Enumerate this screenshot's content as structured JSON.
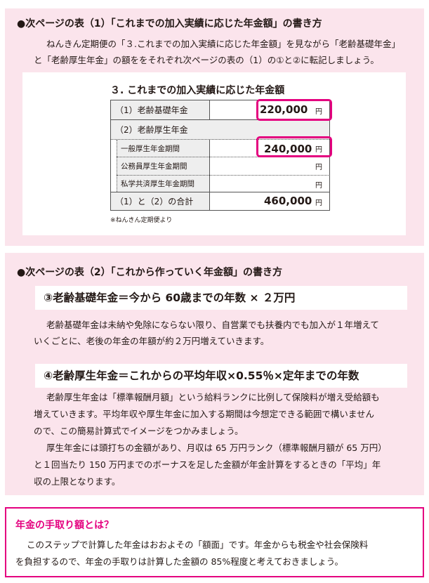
{
  "section1": {
    "heading": "●次ページの表（1）「これまでの加入実績に応じた年金額」の書き方",
    "paragraph": [
      "ねんきん定期便の「３.これまでの加入実績に応じた年金額」を見ながら「老齢基礎年金」",
      "と「老齢厚生年金」の額ををそれぞれ次ページの表の（1）の①と②に転記しましょう。"
    ],
    "table": {
      "title": "３. これまでの加入実績に応じた年金額",
      "rows": [
        {
          "label": "（1）老齢基礎年金",
          "value": "220,000",
          "unit": "円"
        },
        {
          "label": "（2）老齢厚生年金"
        },
        {
          "label": "一般厚生年金期間",
          "value": "240,000",
          "unit": "円"
        },
        {
          "label": "公務員厚生年金期間",
          "unit": "円"
        },
        {
          "label": "私学共済厚生年金期間",
          "unit": "円"
        },
        {
          "label": "（1）と（2）の合計",
          "value": "460,000",
          "unit": "円"
        }
      ],
      "note": "※ねんきん定期便より"
    }
  },
  "section2": {
    "heading": "●次ページの表（2）「これから作っていく年金額」の書き方",
    "formula1": "③老齢基礎年金＝今から 60歳までの年数 × ２万円",
    "paragraph1": [
      "老齢基礎年金は未納や免除にならない限り、自営業でも扶養内でも加入が１年増えて",
      "いくごとに、老後の年金の年額が約２万円増えていきます。"
    ],
    "formula2": "④老齢厚生年金＝これからの平均年収×0.55％×定年までの年数",
    "paragraph2": [
      "老齢厚生年金は「標準報酬月額」という給料ランクに比例して保険料が増え受給額も",
      "増えていきます。平均年収や厚生年金に加入する期間は今想定できる範囲で構いません",
      "ので、この簡易計算式でイメージをつかみましょう。",
      "厚生年金には頭打ちの金額があり、月収は 65 万円ランク（標準報酬月額が 65 万円）",
      "と１回当たり 150 万円までのボーナスを足した金額が年金計算をするときの「平均」年",
      "収の上限となります。"
    ]
  },
  "section3": {
    "title": "年金の手取り額とは？",
    "paragraph": [
      "このステップで計算した年金はおおよその「額面」です。年金からも税金や社会保険料",
      "を負担するので、年金の手取りは計算した金額の 85%程度と考えておきましょう。"
    ]
  }
}
